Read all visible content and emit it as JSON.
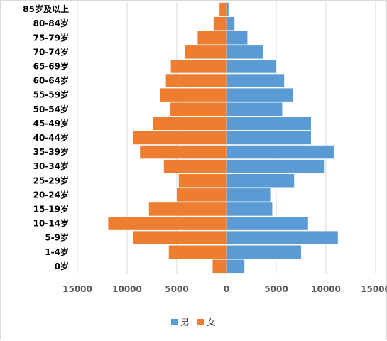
{
  "chart_data": {
    "type": "bar",
    "orientation": "horizontal",
    "subtype": "population-pyramid",
    "categories": [
      "85岁及以上",
      "80-84岁",
      "75-79岁",
      "70-74岁",
      "65-69岁",
      "60-64岁",
      "55-59岁",
      "50-54岁",
      "45-49岁",
      "40-44岁",
      "35-39岁",
      "30-34岁",
      "25-29岁",
      "20-24岁",
      "15-19岁",
      "10-14岁",
      "5-9岁",
      "1-4岁",
      "0岁"
    ],
    "series": [
      {
        "name": "男",
        "color": "#5b9bd5",
        "side": "right",
        "values": [
          200,
          800,
          2100,
          3700,
          5000,
          5800,
          6700,
          5600,
          8500,
          8500,
          10800,
          9800,
          6800,
          4400,
          4600,
          8200,
          11200,
          7500,
          1800
        ]
      },
      {
        "name": "女",
        "color": "#ed7d31",
        "side": "left",
        "values": [
          700,
          1300,
          2900,
          4200,
          5600,
          6100,
          6700,
          5700,
          7400,
          9400,
          8700,
          6300,
          4800,
          5000,
          7800,
          11900,
          9400,
          5800,
          1400
        ]
      }
    ],
    "x_ticks": [
      "15000",
      "10000",
      "5000",
      "0",
      "5000",
      "10000",
      "15000"
    ],
    "xlim": [
      -15000,
      15000
    ],
    "grid": true,
    "legend": "bottom"
  }
}
